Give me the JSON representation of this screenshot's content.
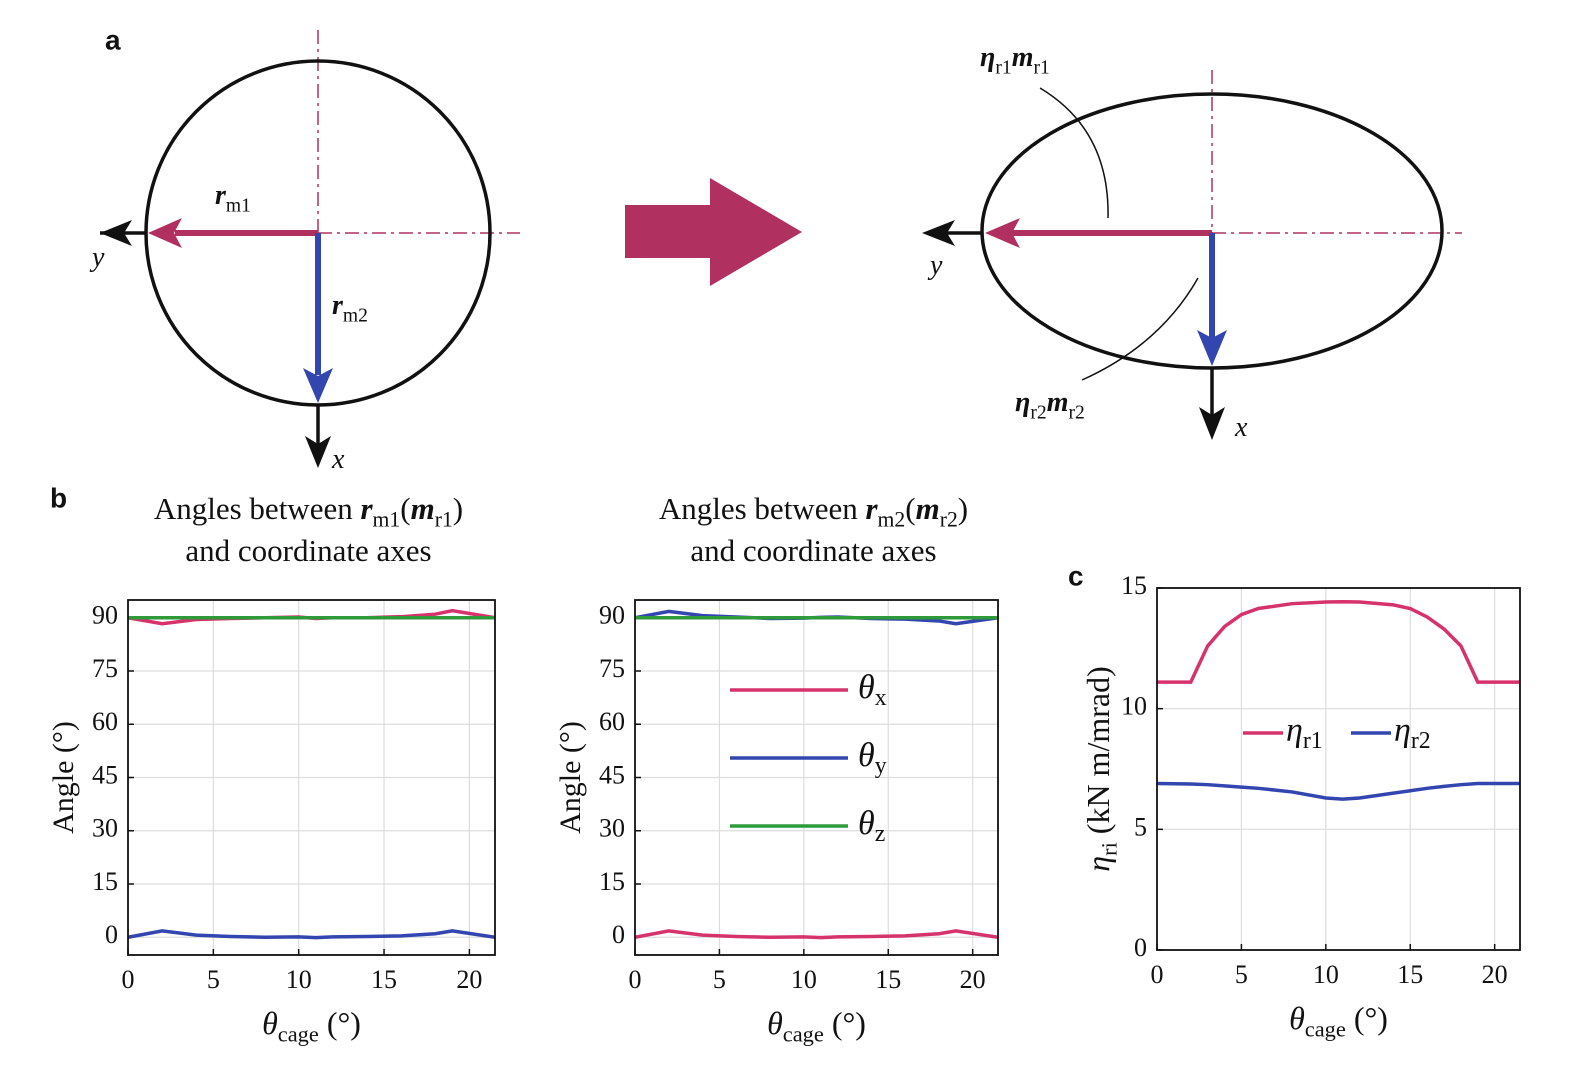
{
  "panels": {
    "a": "a",
    "b": "b",
    "c": "c"
  },
  "diagram": {
    "r_m1": [
      {
        "t": "r",
        "s": "bi"
      },
      {
        "t": "m1",
        "s": "sub"
      }
    ],
    "r_m2": [
      {
        "t": "r",
        "s": "bi"
      },
      {
        "t": "m2",
        "s": "sub"
      }
    ],
    "y_left": [
      {
        "t": "y",
        "s": "i"
      }
    ],
    "x_left": [
      {
        "t": "x",
        "s": "i"
      }
    ],
    "eta_r1": [
      {
        "t": "η",
        "s": "bi"
      },
      {
        "t": "r1",
        "s": "sub"
      },
      {
        "t": "m",
        "s": "bi"
      },
      {
        "t": "r1",
        "s": "sub"
      }
    ],
    "eta_r2": [
      {
        "t": "η",
        "s": "bi"
      },
      {
        "t": "r2",
        "s": "sub"
      },
      {
        "t": "m",
        "s": "bi"
      },
      {
        "t": "r2",
        "s": "sub"
      }
    ],
    "y_right": [
      {
        "t": "y",
        "s": "i"
      }
    ],
    "x_right": [
      {
        "t": "x",
        "s": "i"
      }
    ]
  },
  "chart_data": [
    {
      "type": "line",
      "title": {
        "line1": [
          {
            "t": "Angles between ",
            "s": "n"
          },
          {
            "t": "r",
            "s": "bi"
          },
          {
            "t": "m1",
            "s": "sub"
          },
          {
            "t": "(",
            "s": "n"
          },
          {
            "t": "m",
            "s": "bi"
          },
          {
            "t": "r1",
            "s": "sub"
          },
          {
            "t": ")",
            "s": "n"
          }
        ],
        "line2": "and coordinate axes"
      },
      "xlabel": [
        {
          "t": "θ",
          "s": "i"
        },
        {
          "t": "cage",
          "s": "sub"
        },
        {
          "t": " (°)",
          "s": "n"
        }
      ],
      "ylabel": [
        {
          "t": "Angle (°)",
          "s": "n"
        }
      ],
      "x": [
        0,
        2,
        4,
        6,
        8,
        10,
        11,
        12,
        14,
        16,
        18,
        19,
        21.5
      ],
      "series": [
        {
          "name": [
            {
              "t": "θ",
              "s": "i"
            },
            {
              "t": "x",
              "s": "sub"
            }
          ],
          "color": "#d6336c",
          "values": [
            90,
            88.3,
            89.5,
            89.8,
            90,
            90.2,
            89.8,
            90,
            90,
            90.3,
            91,
            92,
            90
          ]
        },
        {
          "name": [
            {
              "t": "θ",
              "s": "i"
            },
            {
              "t": "y",
              "s": "sub"
            }
          ],
          "color": "#3346b0",
          "values": [
            0,
            1.8,
            0.6,
            0.2,
            0,
            0.1,
            -0.1,
            0.1,
            0.2,
            0.4,
            1,
            1.8,
            0
          ]
        },
        {
          "name": [
            {
              "t": "θ",
              "s": "i"
            },
            {
              "t": "z",
              "s": "sub"
            }
          ],
          "color": "#2e9a3a",
          "values": [
            90,
            90,
            90,
            90,
            90,
            90,
            90,
            90,
            90,
            90,
            90,
            90,
            90
          ]
        }
      ],
      "xlim": [
        0,
        21.5
      ],
      "ylim": [
        -5,
        95
      ],
      "xticks": [
        0,
        5,
        10,
        15,
        20
      ],
      "yticks": [
        0,
        15,
        30,
        45,
        60,
        75,
        90
      ],
      "grid": true,
      "legend": "none"
    },
    {
      "type": "line",
      "title": {
        "line1": [
          {
            "t": "Angles between ",
            "s": "n"
          },
          {
            "t": "r",
            "s": "bi"
          },
          {
            "t": "m2",
            "s": "sub"
          },
          {
            "t": "(",
            "s": "n"
          },
          {
            "t": "m",
            "s": "bi"
          },
          {
            "t": "r2",
            "s": "sub"
          },
          {
            "t": ")",
            "s": "n"
          }
        ],
        "line2": "and coordinate axes"
      },
      "xlabel": [
        {
          "t": "θ",
          "s": "i"
        },
        {
          "t": "cage",
          "s": "sub"
        },
        {
          "t": " (°)",
          "s": "n"
        }
      ],
      "ylabel": [
        {
          "t": "Angle (°)",
          "s": "n"
        }
      ],
      "x": [
        0,
        2,
        4,
        6,
        8,
        10,
        11,
        12,
        14,
        16,
        18,
        19,
        21.5
      ],
      "series": [
        {
          "name": [
            {
              "t": "θ",
              "s": "i"
            },
            {
              "t": "x",
              "s": "sub"
            }
          ],
          "color": "#d6336c",
          "values": [
            0,
            1.8,
            0.6,
            0.2,
            0,
            0.1,
            -0.1,
            0.1,
            0.2,
            0.4,
            1,
            1.8,
            0
          ]
        },
        {
          "name": [
            {
              "t": "θ",
              "s": "i"
            },
            {
              "t": "y",
              "s": "sub"
            }
          ],
          "color": "#3346b0",
          "values": [
            90,
            91.8,
            90.6,
            90.2,
            89.8,
            89.9,
            90.1,
            90.2,
            89.8,
            89.6,
            89.1,
            88.3,
            90
          ]
        },
        {
          "name": [
            {
              "t": "θ",
              "s": "i"
            },
            {
              "t": "z",
              "s": "sub"
            }
          ],
          "color": "#2e9a3a",
          "values": [
            90,
            90,
            90,
            90,
            90,
            90,
            90,
            90,
            90,
            90,
            90,
            90,
            90
          ]
        }
      ],
      "xlim": [
        0,
        21.5
      ],
      "ylim": [
        -5,
        95
      ],
      "xticks": [
        0,
        5,
        10,
        15,
        20
      ],
      "yticks": [
        0,
        15,
        30,
        45,
        60,
        75,
        90
      ],
      "grid": true,
      "legend": "center-vertical"
    },
    {
      "type": "line",
      "xlabel": [
        {
          "t": "θ",
          "s": "i"
        },
        {
          "t": "cage",
          "s": "sub"
        },
        {
          "t": " (°)",
          "s": "n"
        }
      ],
      "ylabel": [
        {
          "t": "η",
          "s": "i"
        },
        {
          "t": "ri",
          "s": "sub"
        },
        {
          "t": " (kN m/mrad)",
          "s": "n"
        }
      ],
      "x": [
        0,
        2,
        3,
        4,
        5,
        6,
        8,
        10,
        11,
        12,
        14,
        15,
        16,
        17,
        18,
        19,
        21.5
      ],
      "series": [
        {
          "name": [
            {
              "t": "η",
              "s": "i"
            },
            {
              "t": "r1",
              "s": "sub"
            }
          ],
          "color": "#d6336c",
          "values": [
            11.1,
            11.1,
            12.6,
            13.4,
            13.9,
            14.15,
            14.35,
            14.42,
            14.43,
            14.42,
            14.3,
            14.15,
            13.8,
            13.3,
            12.6,
            11.1,
            11.1
          ]
        },
        {
          "name": [
            {
              "t": "η",
              "s": "i"
            },
            {
              "t": "r2",
              "s": "sub"
            }
          ],
          "color": "#3346b0",
          "values": [
            6.9,
            6.88,
            6.85,
            6.8,
            6.75,
            6.7,
            6.55,
            6.3,
            6.25,
            6.3,
            6.5,
            6.6,
            6.7,
            6.78,
            6.85,
            6.9,
            6.9
          ]
        }
      ],
      "xlim": [
        0,
        21.5
      ],
      "ylim": [
        0,
        15
      ],
      "xticks": [
        0,
        5,
        10,
        15,
        20
      ],
      "yticks": [
        0,
        5,
        10,
        15
      ],
      "grid": true,
      "legend": "center-horizontal"
    }
  ]
}
